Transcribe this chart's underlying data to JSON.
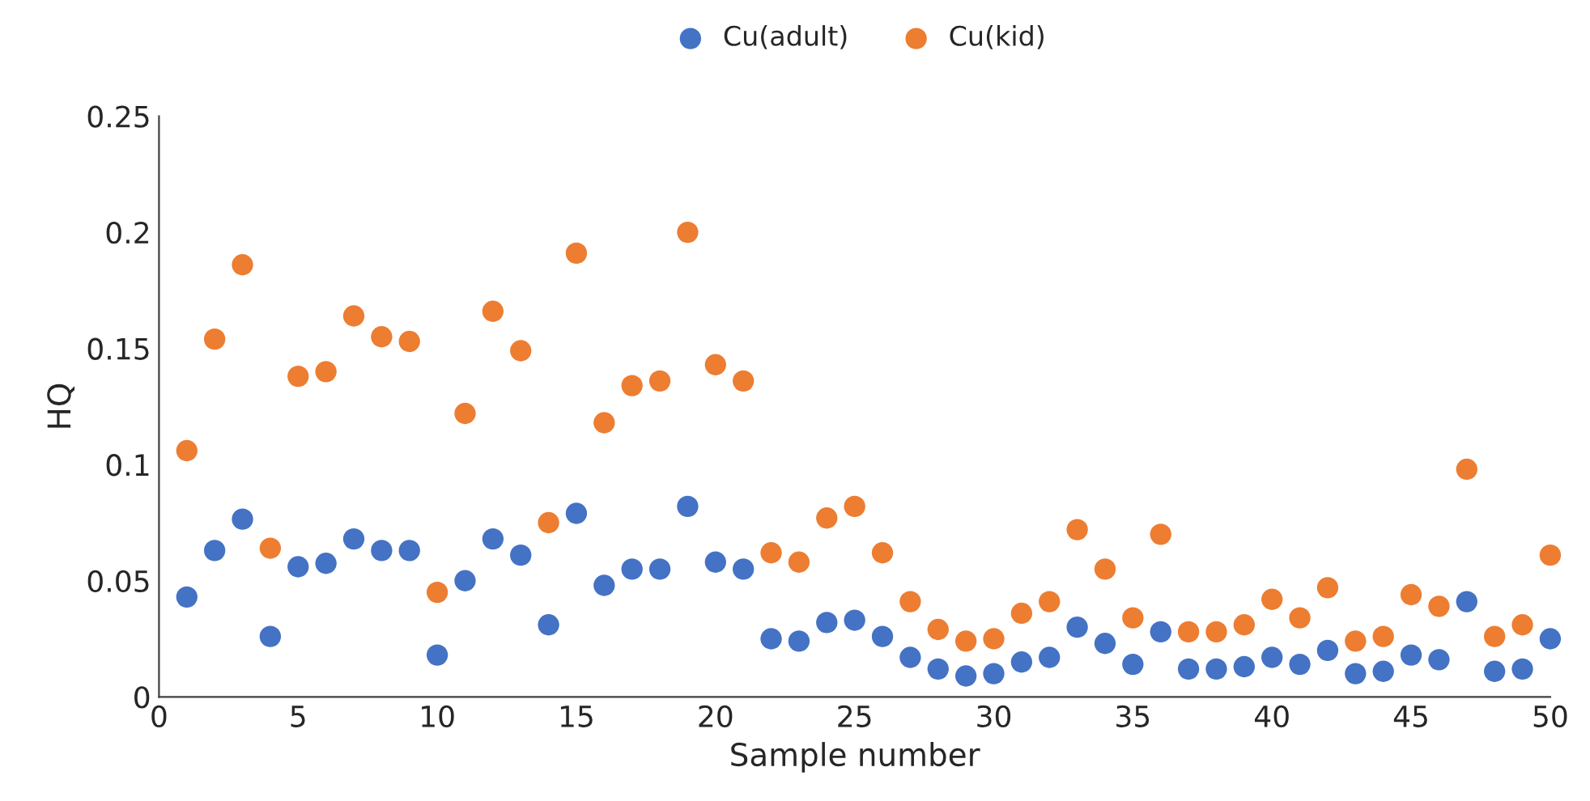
{
  "chart_data": {
    "type": "scatter",
    "xlabel": "Sample number",
    "ylabel": "HQ",
    "x": [
      1,
      2,
      3,
      4,
      5,
      6,
      7,
      8,
      9,
      10,
      11,
      12,
      13,
      14,
      15,
      16,
      17,
      18,
      19,
      20,
      21,
      22,
      23,
      24,
      25,
      26,
      27,
      28,
      29,
      30,
      31,
      32,
      33,
      34,
      35,
      36,
      37,
      38,
      39,
      40,
      41,
      42,
      43,
      44,
      45,
      46,
      47,
      48,
      49,
      50
    ],
    "series": [
      {
        "name": "Cu(adult)",
        "color": "#4472c4",
        "values": [
          0.043,
          0.063,
          0.0765,
          0.026,
          0.056,
          0.0575,
          0.068,
          0.063,
          0.063,
          0.018,
          0.05,
          0.068,
          0.061,
          0.031,
          0.079,
          0.048,
          0.055,
          0.055,
          0.082,
          0.058,
          0.055,
          0.025,
          0.024,
          0.032,
          0.033,
          0.026,
          0.017,
          0.012,
          0.009,
          0.01,
          0.015,
          0.017,
          0.03,
          0.023,
          0.014,
          0.028,
          0.012,
          0.012,
          0.013,
          0.017,
          0.014,
          0.02,
          0.01,
          0.011,
          0.018,
          0.016,
          0.041,
          0.011,
          0.012,
          0.025
        ]
      },
      {
        "name": "Cu(kid)",
        "color": "#ed7d31",
        "values": [
          0.106,
          0.154,
          0.186,
          0.064,
          0.138,
          0.14,
          0.164,
          0.155,
          0.153,
          0.045,
          0.122,
          0.166,
          0.149,
          0.075,
          0.191,
          0.118,
          0.134,
          0.136,
          0.2,
          0.143,
          0.136,
          0.062,
          0.058,
          0.077,
          0.082,
          0.062,
          0.041,
          0.029,
          0.024,
          0.025,
          0.036,
          0.041,
          0.072,
          0.055,
          0.034,
          0.07,
          0.028,
          0.028,
          0.031,
          0.042,
          0.034,
          0.047,
          0.024,
          0.026,
          0.044,
          0.039,
          0.098,
          0.026,
          0.031,
          0.061
        ]
      }
    ],
    "xlim": [
      0,
      50
    ],
    "xticks": [
      0,
      5,
      10,
      15,
      20,
      25,
      30,
      35,
      40,
      45,
      50
    ],
    "ylim": [
      0,
      0.25
    ],
    "yticks": [
      {
        "value": 0,
        "label": "0"
      },
      {
        "value": 0.05,
        "label": "0.05"
      },
      {
        "value": 0.1,
        "label": "0.1"
      },
      {
        "value": 0.15,
        "label": "0.15"
      },
      {
        "value": 0.2,
        "label": "0.2"
      },
      {
        "value": 0.25,
        "label": "0.25"
      }
    ],
    "marker": "circle",
    "legend": "top",
    "grid": false
  }
}
